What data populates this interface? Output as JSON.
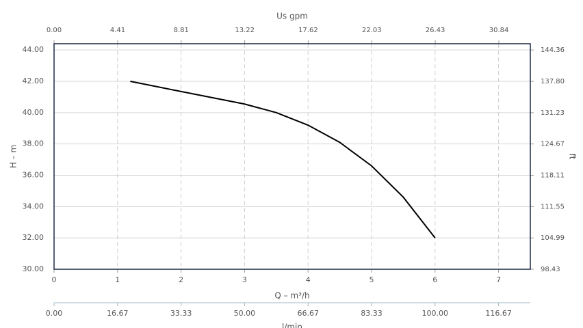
{
  "chart_data": {
    "type": "line",
    "x": [
      1.2,
      2,
      3,
      3.5,
      4,
      4.5,
      5,
      5.5,
      6
    ],
    "values": [
      42,
      41.35,
      40.55,
      40.0,
      39.2,
      38.1,
      36.6,
      34.6,
      32
    ],
    "color": "#000000",
    "x_label": "Q – m³/h",
    "y_label": "H – m",
    "y2_label": "ft",
    "xlim": [
      0,
      7.5
    ],
    "xticks": [
      0,
      1,
      2,
      3,
      4,
      5,
      6,
      7
    ],
    "ylim": [
      30,
      44.4
    ],
    "yticks": [
      {
        "value": 30,
        "label": "30.00"
      },
      {
        "value": 32,
        "label": "32.00"
      },
      {
        "value": 34,
        "label": "34.00"
      },
      {
        "value": 36,
        "label": "36.00"
      },
      {
        "value": 38,
        "label": "38.00"
      },
      {
        "value": 40,
        "label": "40.00"
      },
      {
        "value": 42,
        "label": "42.00"
      },
      {
        "value": 44,
        "label": "44.00"
      }
    ],
    "y2lim": [
      98.43,
      145.67
    ],
    "y2ticks": [
      98.43,
      104.99,
      111.55,
      118.11,
      124.67,
      131.23,
      {
        "value": 137.8,
        "label": "137.80"
      },
      144.36
    ],
    "top_axis": {
      "label": "Us gpm",
      "lim": [
        0,
        33.02
      ],
      "ticks": [
        {
          "value": 0,
          "label": "0.00"
        },
        4.41,
        8.81,
        13.22,
        17.62,
        22.03,
        26.43,
        30.84
      ]
    },
    "bottom_axis": {
      "label": "l/min",
      "lim": [
        0,
        125
      ],
      "ticks": [
        {
          "value": 0,
          "label": "0.00"
        },
        16.67,
        33.33,
        {
          "value": 50,
          "label": "50.00"
        },
        66.67,
        83.33,
        {
          "value": 100,
          "label": "100.00"
        },
        116.67
      ]
    },
    "grid": true
  }
}
